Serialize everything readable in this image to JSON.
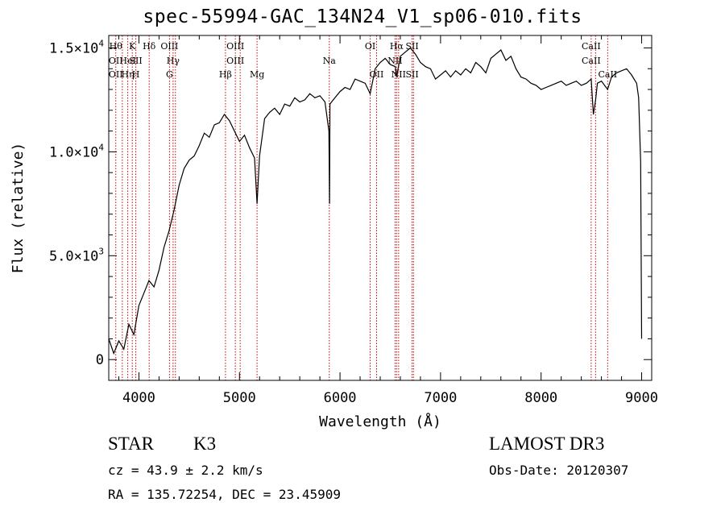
{
  "chart_data": {
    "type": "line",
    "title": "spec-55994-GAC_134N24_V1_sp06-010.fits",
    "xlabel": "Wavelength (Å)",
    "ylabel": "Flux (relative)",
    "xlim": [
      3700,
      9100
    ],
    "ylim": [
      -1000,
      15600
    ],
    "x_ticks": [
      4000,
      5000,
      6000,
      7000,
      8000,
      9000
    ],
    "x_tick_labels": [
      "4000",
      "5000",
      "6000",
      "7000",
      "8000",
      "9000"
    ],
    "y_ticks": [
      0,
      5000,
      10000,
      15000
    ],
    "y_tick_labels": [
      {
        "mant": "0",
        "exp": ""
      },
      {
        "mant": "5.0×10",
        "exp": "3"
      },
      {
        "mant": "1.0×10",
        "exp": "4"
      },
      {
        "mant": "1.5×10",
        "exp": "4"
      }
    ],
    "grid": false,
    "line_color": "#000000",
    "marker_color": "#cc0000",
    "series": [
      {
        "x": [
          3700,
          3750,
          3800,
          3850,
          3900,
          3950,
          4000,
          4050,
          4100,
          4150,
          4200,
          4250,
          4300,
          4350,
          4400,
          4450,
          4500,
          4550,
          4600,
          4650,
          4700,
          4750,
          4800,
          4850,
          4900,
          4950,
          5000,
          5050,
          5100,
          5150,
          5175,
          5200,
          5250,
          5300,
          5350,
          5400,
          5450,
          5500,
          5550,
          5600,
          5650,
          5700,
          5750,
          5800,
          5850,
          5890,
          5896,
          5900,
          5950,
          6000,
          6050,
          6100,
          6150,
          6200,
          6250,
          6300,
          6350,
          6400,
          6450,
          6500,
          6550,
          6563,
          6600,
          6650,
          6700,
          6750,
          6800,
          6850,
          6900,
          6950,
          7000,
          7050,
          7100,
          7150,
          7200,
          7250,
          7300,
          7350,
          7400,
          7450,
          7500,
          7550,
          7600,
          7650,
          7700,
          7750,
          7800,
          7850,
          7900,
          7950,
          8000,
          8050,
          8100,
          8150,
          8200,
          8250,
          8300,
          8350,
          8400,
          8450,
          8498,
          8520,
          8542,
          8560,
          8600,
          8662,
          8700,
          8750,
          8800,
          8850,
          8900,
          8950,
          8970,
          8990,
          9000
        ],
        "y": [
          1000,
          300,
          900,
          500,
          1700,
          1200,
          2600,
          3200,
          3800,
          3500,
          4300,
          5400,
          6200,
          7200,
          8400,
          9200,
          9600,
          9800,
          10300,
          10900,
          10700,
          11300,
          11400,
          11800,
          11500,
          11000,
          10500,
          10800,
          10200,
          9700,
          7500,
          9800,
          11600,
          11900,
          12100,
          11800,
          12300,
          12200,
          12600,
          12400,
          12500,
          12800,
          12600,
          12700,
          12400,
          11000,
          7500,
          12300,
          12600,
          12900,
          13100,
          13000,
          13500,
          13400,
          13300,
          12800,
          14000,
          14300,
          14500,
          14200,
          14100,
          13600,
          14600,
          14800,
          15000,
          14700,
          14300,
          14100,
          14000,
          13500,
          13700,
          13900,
          13600,
          13900,
          13700,
          14000,
          13800,
          14300,
          14100,
          13800,
          14500,
          14700,
          14900,
          14400,
          14600,
          14000,
          13600,
          13500,
          13300,
          13200,
          13000,
          13100,
          13200,
          13300,
          13400,
          13200,
          13300,
          13400,
          13200,
          13300,
          13500,
          11800,
          12500,
          13300,
          13400,
          13000,
          13600,
          13800,
          13900,
          14000,
          13700,
          13300,
          12600,
          9500,
          1000
        ]
      }
    ],
    "lines": [
      {
        "wl": 3770,
        "labels": [
          "Hθ",
          "OII",
          "OII"
        ],
        "rows": [
          0,
          1,
          2
        ]
      },
      {
        "wl": 3835,
        "labels": [],
        "rows": []
      },
      {
        "wl": 3889,
        "labels": [
          "HeI",
          "Hη"
        ],
        "rows": [
          1,
          2
        ]
      },
      {
        "wl": 3934,
        "labels": [
          "K"
        ],
        "rows": [
          0
        ]
      },
      {
        "wl": 3969,
        "labels": [
          "SII",
          "H"
        ],
        "rows": [
          1,
          2
        ]
      },
      {
        "wl": 4102,
        "labels": [
          "Hδ"
        ],
        "rows": [
          0
        ]
      },
      {
        "wl": 4304,
        "labels": [
          "OIII",
          "G"
        ],
        "rows": [
          0,
          2
        ]
      },
      {
        "wl": 4340,
        "labels": [
          "Hγ"
        ],
        "rows": [
          1
        ]
      },
      {
        "wl": 4363,
        "labels": [],
        "rows": []
      },
      {
        "wl": 4861,
        "labels": [
          "Hβ"
        ],
        "rows": [
          2
        ]
      },
      {
        "wl": 4959,
        "labels": [
          "OIII",
          "OIII"
        ],
        "rows": [
          0,
          1
        ]
      },
      {
        "wl": 5007,
        "labels": [],
        "rows": []
      },
      {
        "wl": 5175,
        "labels": [
          "Mg"
        ],
        "rows": [
          2
        ]
      },
      {
        "wl": 5893,
        "labels": [
          "Na"
        ],
        "rows": [
          1
        ]
      },
      {
        "wl": 6300,
        "labels": [
          "OI"
        ],
        "rows": [
          0
        ]
      },
      {
        "wl": 6364,
        "labels": [
          "OII"
        ],
        "rows": [
          2
        ]
      },
      {
        "wl": 6548,
        "labels": [
          "NII"
        ],
        "rows": [
          1
        ]
      },
      {
        "wl": 6563,
        "labels": [
          "Hα"
        ],
        "rows": [
          0
        ]
      },
      {
        "wl": 6583,
        "labels": [
          "NII"
        ],
        "rows": [
          2
        ]
      },
      {
        "wl": 6717,
        "labels": [
          "SII",
          "SII"
        ],
        "rows": [
          0,
          2
        ]
      },
      {
        "wl": 6731,
        "labels": [],
        "rows": []
      },
      {
        "wl": 8498,
        "labels": [
          "CaII",
          "CaII"
        ],
        "rows": [
          0,
          1
        ]
      },
      {
        "wl": 8542,
        "labels": [],
        "rows": []
      },
      {
        "wl": 8662,
        "labels": [
          "CaII"
        ],
        "rows": [
          2
        ]
      }
    ]
  },
  "info": {
    "obj_class": "STAR",
    "subclass": "K3",
    "survey": "LAMOST DR3",
    "cz": "cz = 43.9 ± 2.2 km/s",
    "obs_date": "Obs-Date: 20120307",
    "radec": "RA = 135.72254, DEC =  23.45909"
  }
}
